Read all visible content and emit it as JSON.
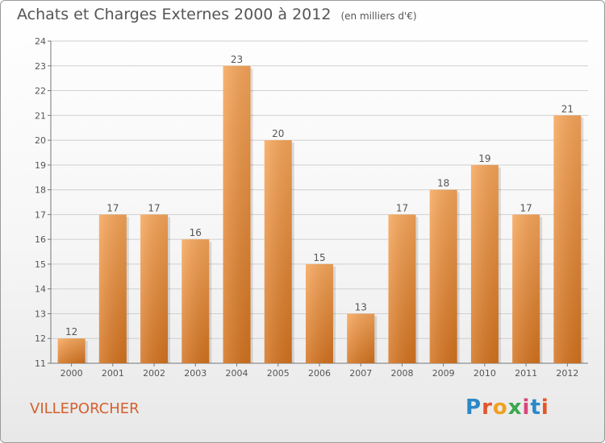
{
  "title": "Achats et Charges Externes 2000 à 2012",
  "unit_note": "(en milliers d'€)",
  "place": "VILLEPORCHER",
  "logo": {
    "text": "Proxiti",
    "letter_colors": [
      "#2a88c8",
      "#e2562b",
      "#f0a020",
      "#3aa84c",
      "#d8457a",
      "#2a88c8",
      "#e2562b"
    ]
  },
  "colors": {
    "bar_top": "#f7a65a",
    "bar_bottom": "#d4731f",
    "axis": "#777777",
    "grid": "#cfcfcf",
    "text": "#555555"
  },
  "chart_data": {
    "type": "bar",
    "title": "Achats et Charges Externes 2000 à 2012",
    "subtitle": "(en milliers d'€)",
    "categories": [
      "2000",
      "2001",
      "2002",
      "2003",
      "2004",
      "2005",
      "2006",
      "2007",
      "2008",
      "2009",
      "2010",
      "2011",
      "2012"
    ],
    "values": [
      12,
      17,
      17,
      16,
      23,
      20,
      15,
      13,
      17,
      18,
      19,
      17,
      21
    ],
    "ylim": [
      11,
      24
    ],
    "yticks": [
      11,
      12,
      13,
      14,
      15,
      16,
      17,
      18,
      19,
      20,
      21,
      22,
      23,
      24
    ],
    "grid": true,
    "xlabel": "",
    "ylabel": ""
  }
}
